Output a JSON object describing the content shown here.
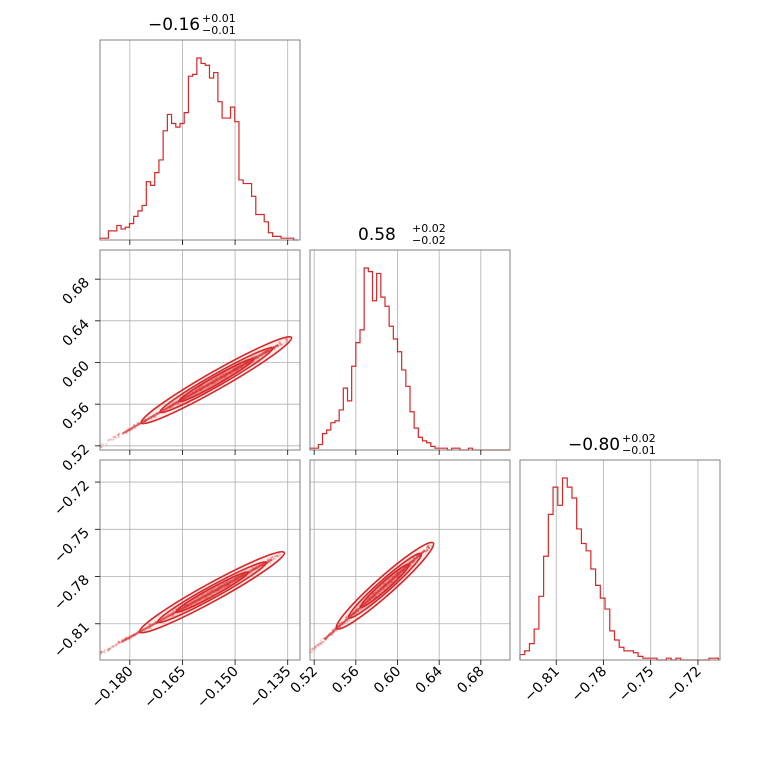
{
  "chart_data": {
    "type": "corner",
    "color": "#d62728",
    "grid": true,
    "parameters": [
      {
        "title": {
          "value": "−0.16",
          "plus": "+0.01",
          "minus": "−0.01"
        },
        "range": [
          -0.1885,
          -0.1315
        ],
        "ticks": [
          {
            "v": -0.18,
            "label": "−0.180"
          },
          {
            "v": -0.165,
            "label": "−0.165"
          },
          {
            "v": -0.15,
            "label": "−0.150"
          },
          {
            "v": -0.135,
            "label": "−0.135"
          }
        ],
        "hist": {
          "bins": [
            -0.1885,
            -0.1873,
            -0.1861,
            -0.1849,
            -0.1837,
            -0.1825,
            -0.1813,
            -0.1801,
            -0.1789,
            -0.1777,
            -0.1765,
            -0.1753,
            -0.1741,
            -0.1729,
            -0.1717,
            -0.1705,
            -0.1693,
            -0.1681,
            -0.1669,
            -0.1657,
            -0.1645,
            -0.1633,
            -0.1621,
            -0.1609,
            -0.1597,
            -0.1585,
            -0.1573,
            -0.1561,
            -0.1549,
            -0.1537,
            -0.1525,
            -0.1513,
            -0.1501,
            -0.1489,
            -0.1477,
            -0.1465,
            -0.1453,
            -0.1441,
            -0.1429,
            -0.1417,
            -0.1405,
            -0.1393,
            -0.1381,
            -0.1369,
            -0.1357,
            -0.1345,
            -0.1333,
            -0.1321
          ],
          "counts": [
            1,
            1,
            5,
            5,
            8,
            6,
            7,
            9,
            13,
            16,
            19,
            32,
            30,
            37,
            44,
            60,
            69,
            64,
            62,
            64,
            70,
            90,
            91,
            100,
            97,
            96,
            89,
            92,
            76,
            67,
            67,
            73,
            65,
            33,
            31,
            31,
            24,
            14,
            14,
            10,
            4,
            2,
            2,
            1,
            1,
            1,
            0
          ]
        }
      },
      {
        "title": {
          "value": "0.58",
          "plus": "+0.02",
          "minus": "−0.02"
        },
        "range": [
          0.516,
          0.708
        ],
        "ticks": [
          {
            "v": 0.52,
            "label": "0.52"
          },
          {
            "v": 0.56,
            "label": "0.56"
          },
          {
            "v": 0.6,
            "label": "0.60"
          },
          {
            "v": 0.64,
            "label": "0.64"
          },
          {
            "v": 0.68,
            "label": "0.68"
          }
        ],
        "hist": {
          "bins": [
            0.516,
            0.52,
            0.524,
            0.528,
            0.532,
            0.536,
            0.54,
            0.544,
            0.548,
            0.552,
            0.556,
            0.56,
            0.564,
            0.568,
            0.572,
            0.576,
            0.58,
            0.584,
            0.588,
            0.592,
            0.596,
            0.6,
            0.604,
            0.608,
            0.612,
            0.616,
            0.62,
            0.624,
            0.628,
            0.632,
            0.636,
            0.64,
            0.644,
            0.648,
            0.652,
            0.656,
            0.66,
            0.664,
            0.668,
            0.672,
            0.676,
            0.68,
            0.684,
            0.688,
            0.692,
            0.696,
            0.7,
            0.704,
            0.708
          ],
          "counts": [
            1,
            1,
            3,
            9,
            11,
            15,
            16,
            22,
            34,
            27,
            46,
            59,
            66,
            100,
            98,
            82,
            97,
            84,
            79,
            68,
            61,
            54,
            44,
            35,
            21,
            12,
            7,
            5,
            4,
            2,
            1,
            1,
            1,
            0,
            1,
            1,
            0,
            0,
            1,
            0,
            0,
            0,
            0,
            0,
            0,
            0,
            0,
            0
          ]
        }
      },
      {
        "title": {
          "value": "−0.80",
          "plus": "+0.02",
          "minus": "−0.01"
        },
        "range": [
          -0.833,
          -0.706
        ],
        "ticks": [
          {
            "v": -0.81,
            "label": "−0.81"
          },
          {
            "v": -0.78,
            "label": "−0.78"
          },
          {
            "v": -0.75,
            "label": "−0.75"
          },
          {
            "v": -0.72,
            "label": "−0.72"
          }
        ],
        "hist": {
          "bins": [
            -0.833,
            -0.83,
            -0.827,
            -0.824,
            -0.821,
            -0.818,
            -0.815,
            -0.812,
            -0.809,
            -0.806,
            -0.803,
            -0.8,
            -0.797,
            -0.794,
            -0.791,
            -0.788,
            -0.785,
            -0.782,
            -0.779,
            -0.776,
            -0.773,
            -0.77,
            -0.767,
            -0.764,
            -0.761,
            -0.758,
            -0.755,
            -0.752,
            -0.749,
            -0.746,
            -0.743,
            -0.74,
            -0.737,
            -0.734,
            -0.731,
            -0.728,
            -0.725,
            -0.722,
            -0.719,
            -0.716,
            -0.713,
            -0.71,
            -0.707
          ],
          "counts": [
            3,
            5,
            9,
            17,
            35,
            57,
            80,
            95,
            85,
            100,
            95,
            89,
            72,
            64,
            60,
            50,
            41,
            34,
            28,
            16,
            11,
            7,
            5,
            5,
            4,
            2,
            1,
            1,
            1,
            0,
            0,
            1,
            0,
            1,
            0,
            0,
            0,
            0,
            0,
            0,
            1,
            1
          ]
        }
      }
    ],
    "pairs": [
      {
        "row": 1,
        "col": 0,
        "x": "parameter 1",
        "y": "parameter 2",
        "trend": [
          [
            -0.1885,
            0.5195
          ],
          [
            -0.135,
            0.622
          ]
        ]
      },
      {
        "row": 2,
        "col": 0,
        "x": "parameter 1",
        "y": "parameter 3",
        "trend": [
          [
            -0.1885,
            -0.829
          ],
          [
            -0.137,
            -0.766
          ]
        ]
      },
      {
        "row": 2,
        "col": 1,
        "x": "parameter 2",
        "y": "parameter 3",
        "trend": [
          [
            0.516,
            -0.828
          ],
          [
            0.632,
            -0.76
          ]
        ]
      }
    ]
  }
}
